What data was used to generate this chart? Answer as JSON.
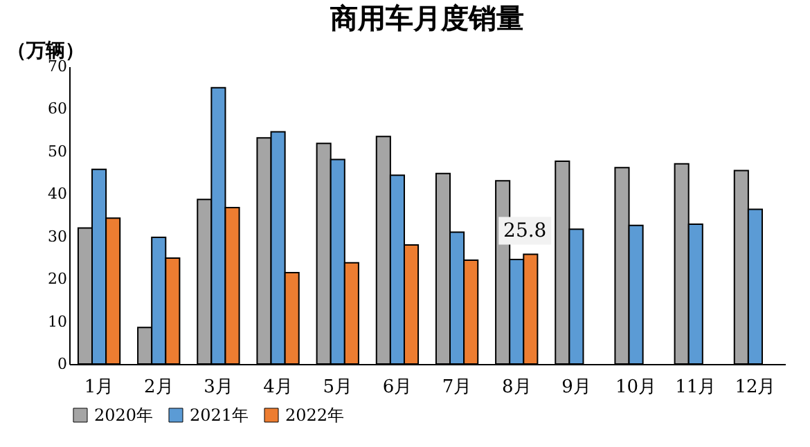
{
  "chart_data": {
    "type": "bar",
    "title": "商用车月度销量",
    "ylabel": "（万辆）",
    "categories": [
      "1月",
      "2月",
      "3月",
      "4月",
      "5月",
      "6月",
      "7月",
      "8月",
      "9月",
      "10月",
      "11月",
      "12月"
    ],
    "series": [
      {
        "name": "2020年",
        "color": "#a5a5a5",
        "values": [
          32.0,
          8.6,
          38.7,
          53.2,
          51.9,
          53.5,
          44.8,
          43.1,
          47.7,
          46.2,
          47.1,
          45.5
        ]
      },
      {
        "name": "2021年",
        "color": "#5b9bd5",
        "values": [
          45.8,
          29.8,
          65.0,
          54.6,
          48.1,
          44.4,
          31.0,
          24.6,
          31.7,
          32.6,
          32.9,
          36.4
        ]
      },
      {
        "name": "2022年",
        "color": "#ed7d31",
        "values": [
          34.3,
          24.9,
          36.8,
          21.5,
          23.8,
          28.0,
          24.4,
          25.8,
          null,
          null,
          null,
          null
        ],
        "value_labels": [
          null,
          null,
          null,
          null,
          null,
          null,
          null,
          "25.8",
          null,
          null,
          null,
          null
        ]
      }
    ],
    "ylim": [
      0,
      70
    ],
    "yticks": [
      0,
      10,
      20,
      30,
      40,
      50,
      60,
      70
    ],
    "grid": false,
    "legend": "bottom"
  }
}
